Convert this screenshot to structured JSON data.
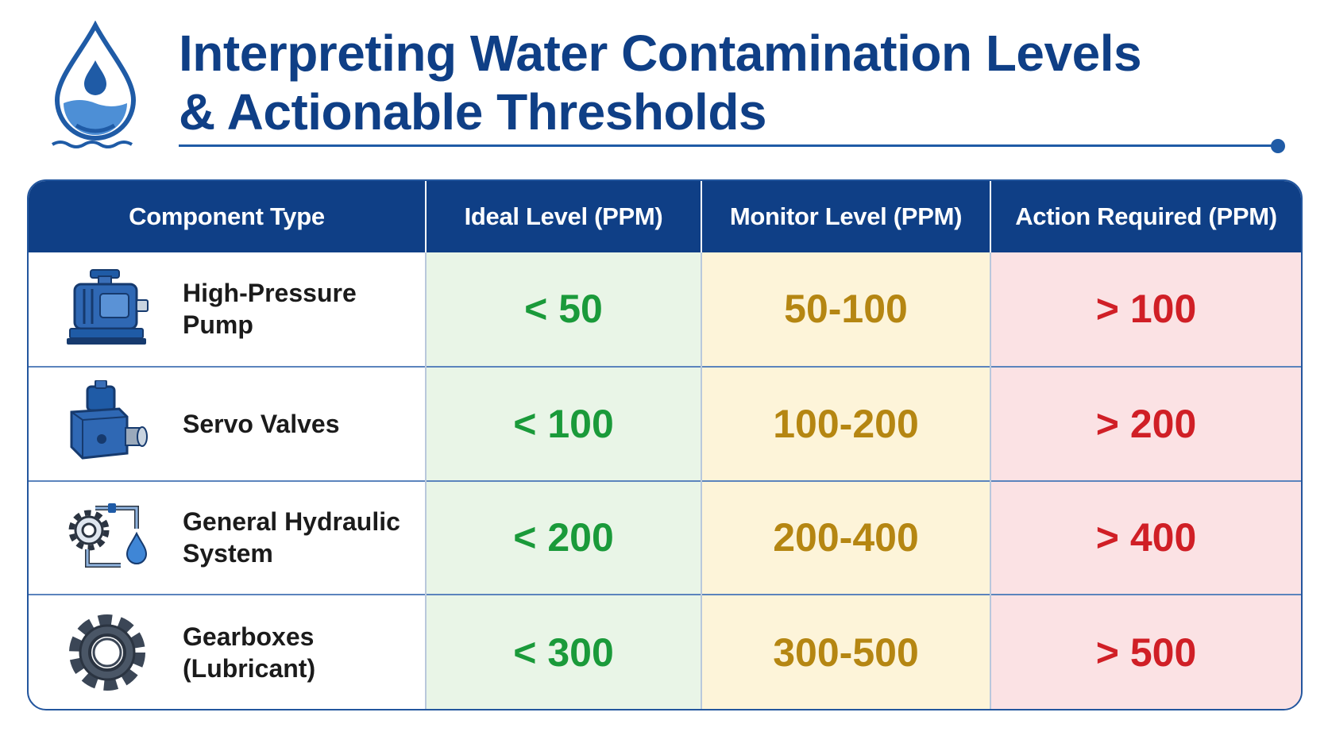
{
  "title": {
    "line1": "Interpreting Water Contamination Levels",
    "line2": "& Actionable Thresholds"
  },
  "colors": {
    "header_bg": "#0f3f86",
    "ideal_bg": "#e9f5e7",
    "ideal_text": "#1a9a3a",
    "monitor_bg": "#fdf4d9",
    "monitor_text": "#b58612",
    "action_bg": "#fbe2e4",
    "action_text": "#d01f26"
  },
  "table": {
    "headers": [
      "Component Type",
      "Ideal Level (PPM)",
      "Monitor Level (PPM)",
      "Action Required (PPM)"
    ],
    "rows": [
      {
        "icon": "pump-icon",
        "component": "High-Pressure Pump",
        "ideal": "< 50",
        "monitor": "50-100",
        "action": "> 100"
      },
      {
        "icon": "valve-icon",
        "component": "Servo Valves",
        "ideal": "< 100",
        "monitor": "100-200",
        "action": "> 200"
      },
      {
        "icon": "hydraulic-system-icon",
        "component": "General Hydraulic System",
        "ideal": "< 200",
        "monitor": "200-400",
        "action": "> 400"
      },
      {
        "icon": "gear-icon",
        "component": "Gearboxes (Lubricant)",
        "ideal": "< 300",
        "monitor": "300-500",
        "action": "> 500"
      }
    ]
  },
  "logo_icon": "water-drop-icon"
}
